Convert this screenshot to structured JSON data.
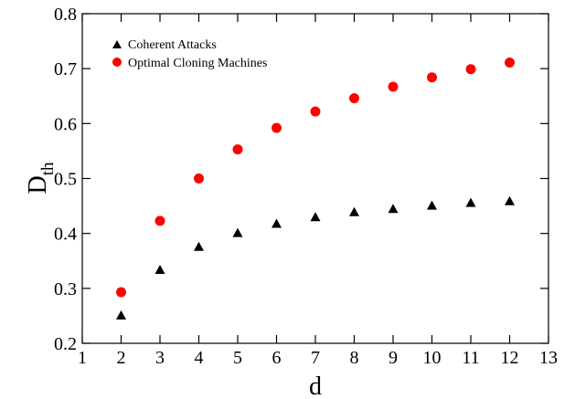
{
  "chart_data": {
    "type": "scatter",
    "xlabel": "d",
    "ylabel_main": "D",
    "ylabel_sub": "th",
    "xlim": [
      1,
      13
    ],
    "ylim": [
      0.2,
      0.8
    ],
    "x_ticks": [
      1,
      2,
      3,
      4,
      5,
      6,
      7,
      8,
      9,
      10,
      11,
      12,
      13
    ],
    "y_ticks": [
      "0.2",
      "0.3",
      "0.4",
      "0.5",
      "0.6",
      "0.7",
      "0.8"
    ],
    "grid": false,
    "legend_position": "top-left",
    "series": [
      {
        "name": "Coherent Attacks",
        "marker": "triangle",
        "color": "#000000",
        "x": [
          2,
          3,
          4,
          5,
          6,
          7,
          8,
          9,
          10,
          11,
          12
        ],
        "y": [
          0.25,
          0.333,
          0.375,
          0.4,
          0.417,
          0.429,
          0.438,
          0.444,
          0.45,
          0.455,
          0.458
        ]
      },
      {
        "name": "Optimal Cloning Machines",
        "marker": "circle",
        "color": "#ff0000",
        "x": [
          2,
          3,
          4,
          5,
          6,
          7,
          8,
          9,
          10,
          11,
          12
        ],
        "y": [
          0.293,
          0.423,
          0.5,
          0.553,
          0.592,
          0.622,
          0.646,
          0.667,
          0.684,
          0.699,
          0.711
        ]
      }
    ]
  }
}
